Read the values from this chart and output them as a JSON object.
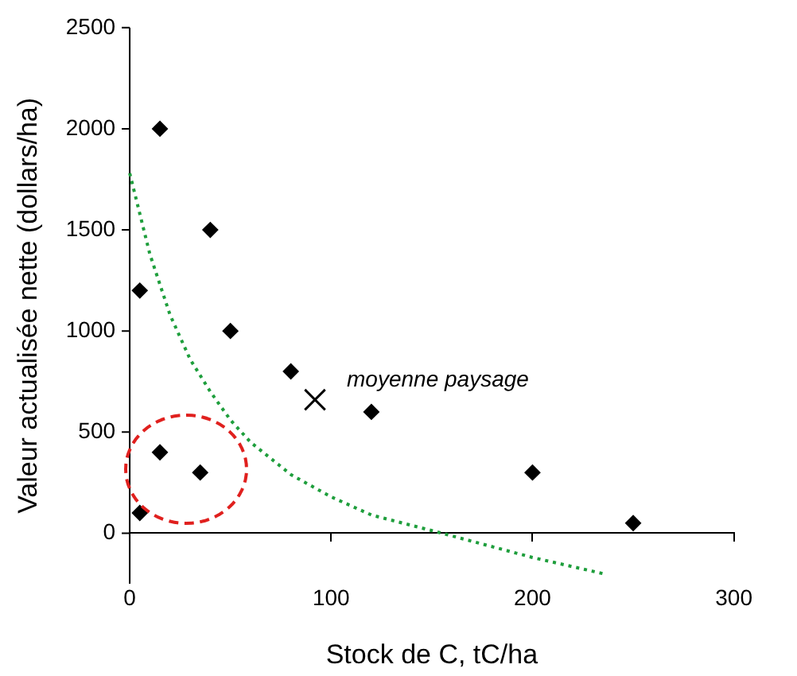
{
  "chart_data": {
    "type": "scatter",
    "xlabel": "Stock de C, tC/ha",
    "ylabel": "Valeur actualisée nette (dollars/ha)",
    "xlim": [
      0,
      300
    ],
    "xticks": [
      0,
      100,
      200,
      300
    ],
    "ylim": [
      -250,
      2500
    ],
    "yticks": [
      0,
      500,
      1000,
      1500,
      2000,
      2500
    ],
    "grid": false,
    "legend": false,
    "annotations": [
      {
        "text": "moyenne paysage",
        "x": 92,
        "y": 660
      }
    ],
    "series": [
      {
        "type": "scatter",
        "marker": "diamond",
        "color": "#000000",
        "x": [
          15,
          40,
          5,
          50,
          80,
          120,
          200,
          250,
          15,
          35,
          5
        ],
        "values": [
          2000,
          1500,
          1200,
          1000,
          800,
          600,
          300,
          50,
          400,
          300,
          100
        ]
      },
      {
        "type": "scatter",
        "marker": "cross",
        "color": "#000000",
        "x": [
          92
        ],
        "values": [
          660
        ]
      },
      {
        "type": "line",
        "marker": "none",
        "line_style": "dotted",
        "color": "#1e9e3c",
        "x": [
          0,
          10,
          20,
          30,
          40,
          50,
          60,
          80,
          100,
          120,
          155,
          200,
          235
        ],
        "values": [
          1780,
          1380,
          1080,
          860,
          700,
          560,
          450,
          290,
          180,
          90,
          0,
          -120,
          -200
        ]
      }
    ]
  }
}
